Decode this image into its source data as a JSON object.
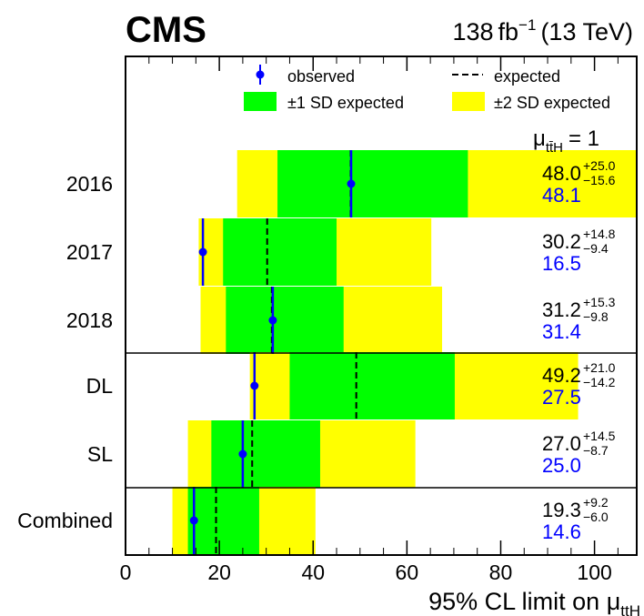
{
  "header": {
    "experiment": "CMS",
    "luminosity": "138",
    "lumi_unit": "fb",
    "lumi_exp": "−1",
    "energy": "(13 TeV)"
  },
  "legend": {
    "observed": "observed",
    "expected": "expected",
    "one_sd": "±1 SD expected",
    "two_sd": "±2 SD expected"
  },
  "mu_label": {
    "mu": "μ",
    "sub": "tt̄H",
    "value": "= 1"
  },
  "chart_data": {
    "type": "limit",
    "title": "",
    "xlabel_prefix": "95% CL limit on ",
    "xlabel_mu": "μ",
    "xlabel_sub": "ttH",
    "xlim": [
      0,
      109
    ],
    "xticks": [
      0,
      20,
      40,
      60,
      80,
      100
    ],
    "xtick_labels": [
      "0",
      "20",
      "40",
      "60",
      "80",
      "100"
    ],
    "categories": [
      "2016",
      "2017",
      "2018",
      "DL",
      "SL",
      "Combined"
    ],
    "groups": [
      [
        0,
        1,
        2
      ],
      [
        3,
        4
      ],
      [
        5
      ]
    ],
    "colors": {
      "observed": "#0000ff",
      "expected": "#000000",
      "one_sd": "#00ff00",
      "two_sd": "#ffff00"
    },
    "rows": [
      {
        "label": "2016",
        "observed": 48.1,
        "expected": 48.0,
        "err_up": "+25.0",
        "err_down": "−15.6",
        "one_sd": [
          32.4,
          73.0
        ],
        "two_sd": [
          23.8,
          109.0
        ],
        "expected_text": "48.0",
        "observed_text": "48.1"
      },
      {
        "label": "2017",
        "observed": 16.5,
        "expected": 30.2,
        "err_up": "+14.8",
        "err_down": "−9.4",
        "one_sd": [
          20.8,
          45.0
        ],
        "two_sd": [
          15.6,
          65.2
        ],
        "expected_text": "30.2",
        "observed_text": "16.5"
      },
      {
        "label": "2018",
        "observed": 31.4,
        "expected": 31.2,
        "err_up": "+15.3",
        "err_down": "−9.8",
        "one_sd": [
          21.4,
          46.5
        ],
        "two_sd": [
          16.0,
          67.5
        ],
        "expected_text": "31.2",
        "observed_text": "31.4"
      },
      {
        "label": "DL",
        "observed": 27.5,
        "expected": 49.2,
        "err_up": "+21.0",
        "err_down": "−14.2",
        "one_sd": [
          35.0,
          70.2
        ],
        "two_sd": [
          26.5,
          96.5
        ],
        "expected_text": "49.2",
        "observed_text": "27.5"
      },
      {
        "label": "SL",
        "observed": 25.0,
        "expected": 27.0,
        "err_up": "+14.5",
        "err_down": "−8.7",
        "one_sd": [
          18.3,
          41.5
        ],
        "two_sd": [
          13.3,
          61.8
        ],
        "expected_text": "27.0",
        "observed_text": "25.0"
      },
      {
        "label": "Combined",
        "observed": 14.6,
        "expected": 19.3,
        "err_up": "+9.2",
        "err_down": "−6.0",
        "one_sd": [
          13.3,
          28.5
        ],
        "two_sd": [
          10.0,
          40.5
        ],
        "expected_text": "19.3",
        "observed_text": "14.6"
      }
    ]
  }
}
